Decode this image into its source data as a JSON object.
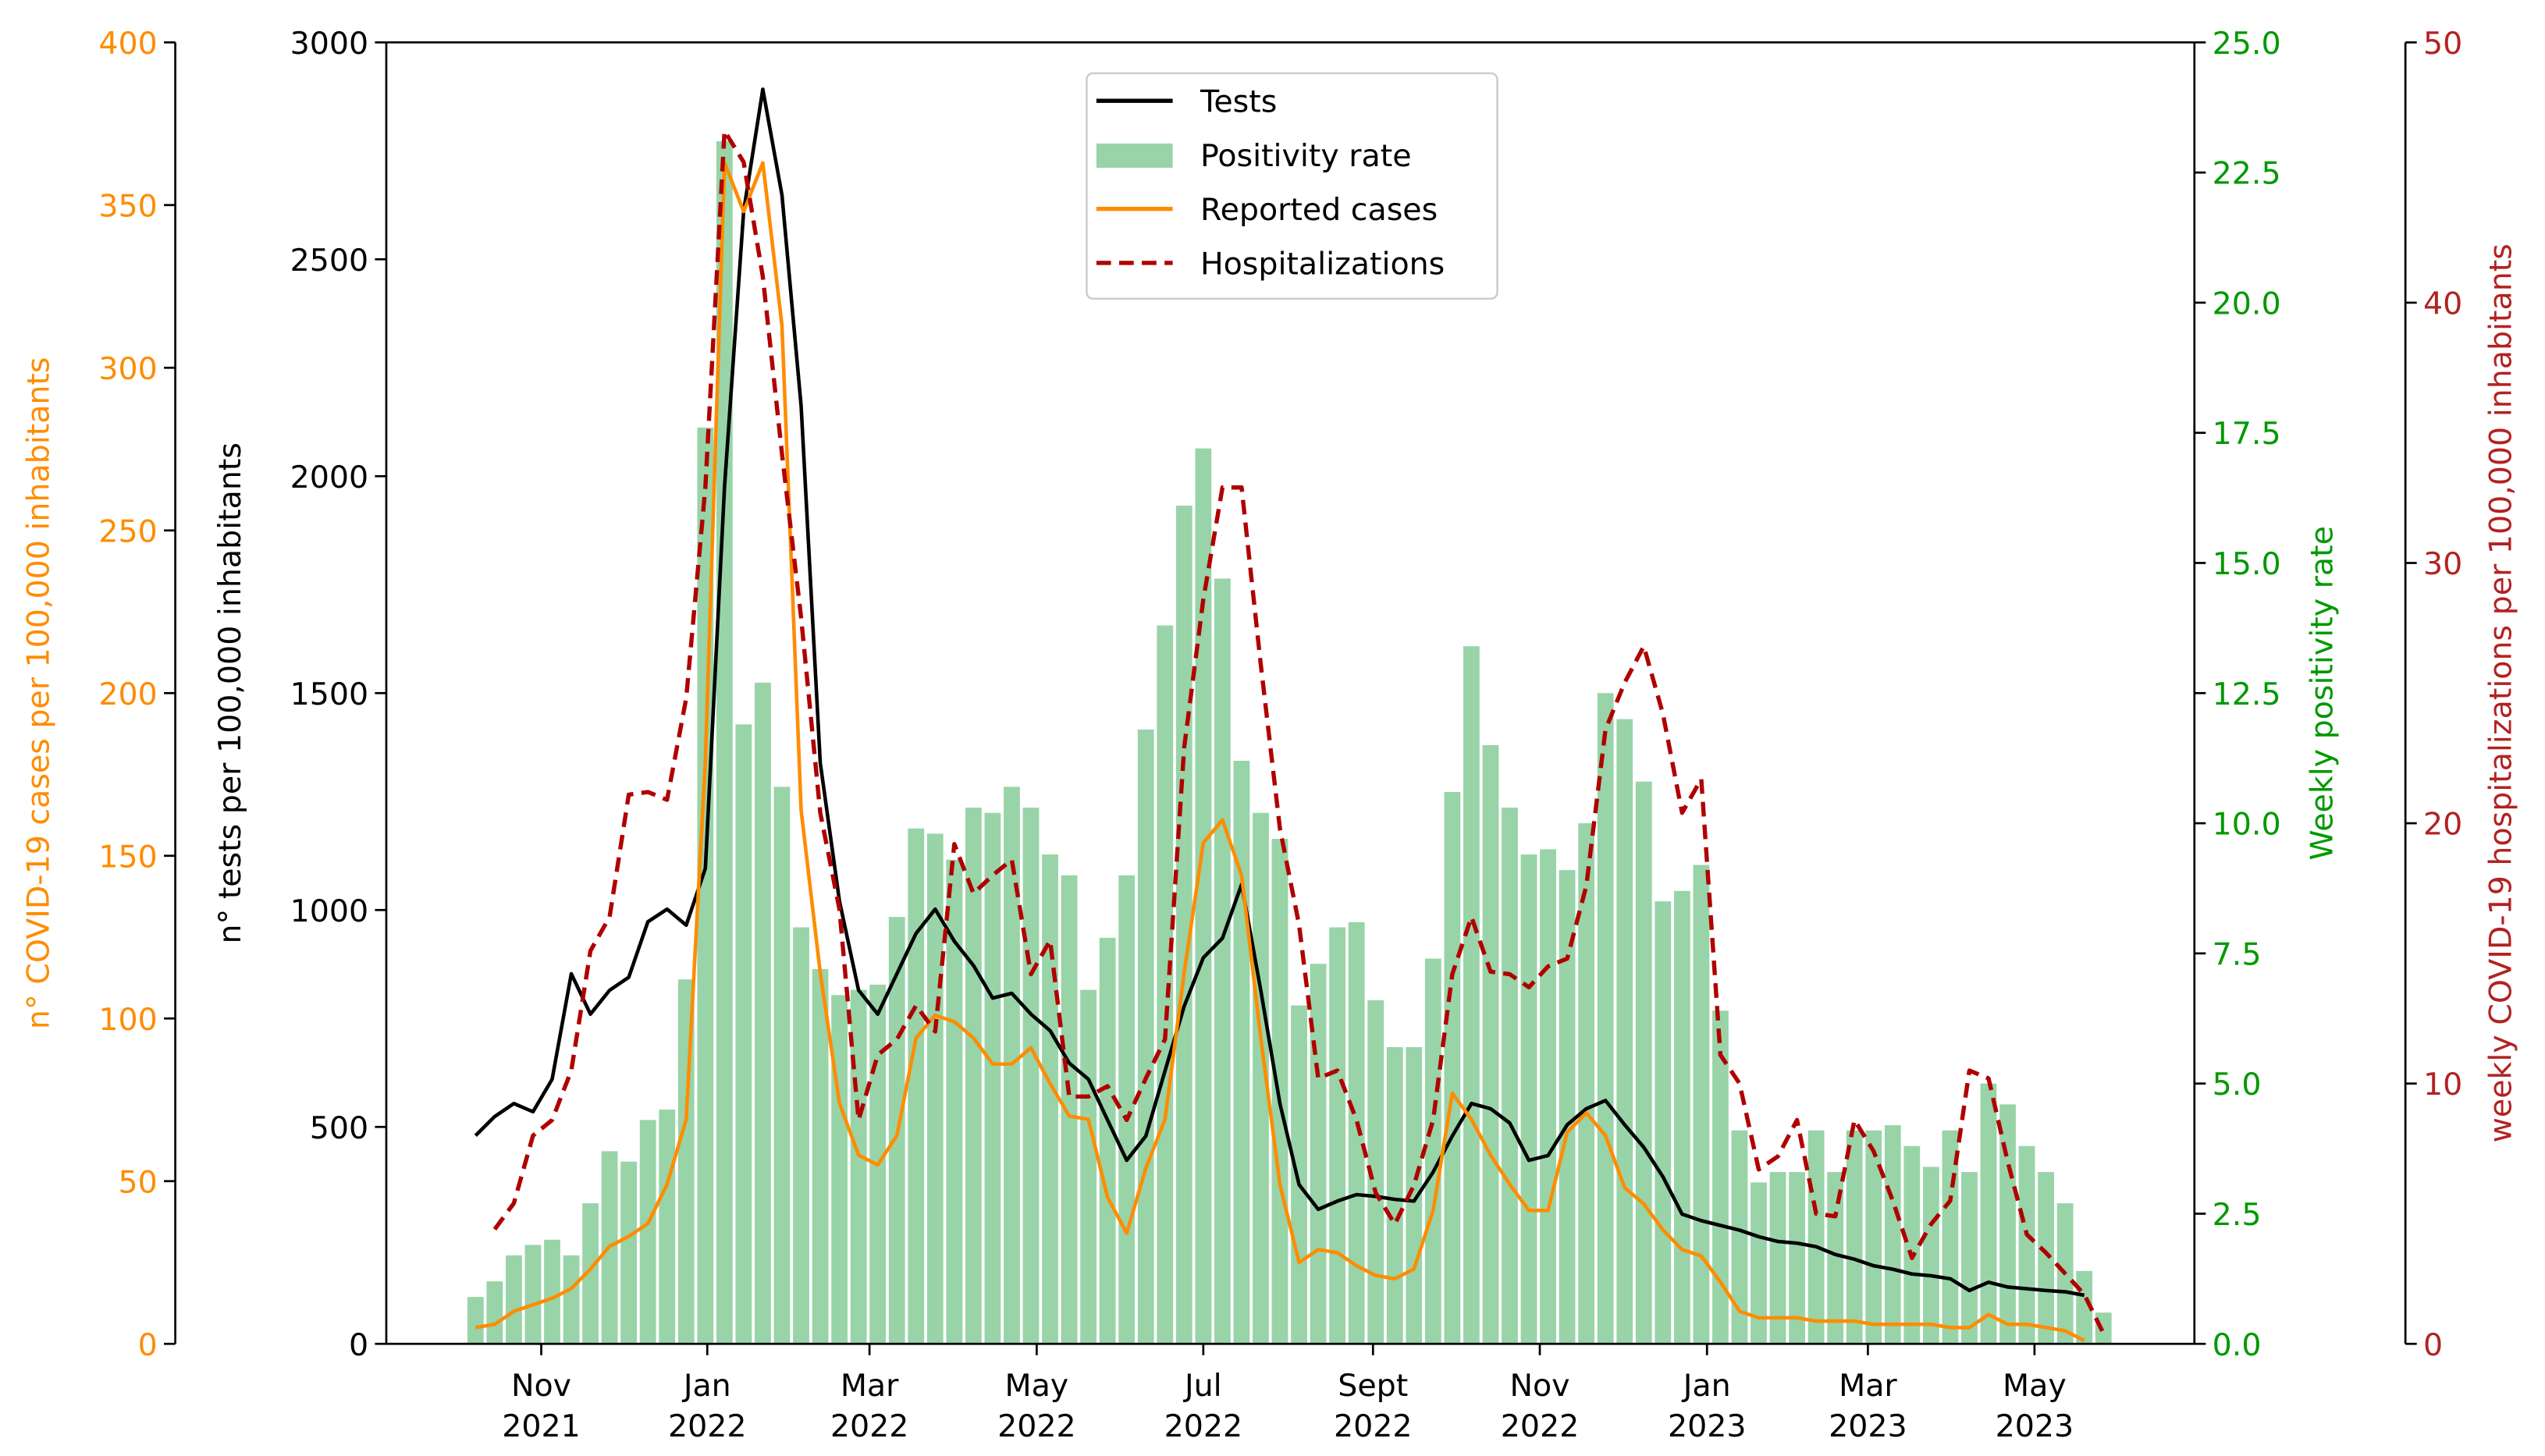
{
  "chart_data": {
    "type": "combo",
    "x": [
      0,
      1,
      2,
      3,
      4,
      5,
      6,
      7,
      8,
      9,
      10,
      11,
      12,
      13,
      14,
      15,
      16,
      17,
      18,
      19,
      20,
      21,
      22,
      23,
      24,
      25,
      26,
      27,
      28,
      29,
      30,
      31,
      32,
      33,
      34,
      35,
      36,
      37,
      38,
      39,
      40,
      41,
      42,
      43,
      44,
      45,
      46,
      47,
      48,
      49,
      50,
      51,
      52,
      53,
      54,
      55,
      56,
      57,
      58,
      59,
      60,
      61,
      62,
      63,
      64,
      65,
      66,
      67,
      68,
      69,
      70,
      71,
      72,
      73,
      74,
      75,
      76,
      77,
      78,
      79,
      80,
      81,
      82,
      83,
      84,
      85
    ],
    "xlim": [
      -4.66,
      89.75
    ],
    "xticks": [
      {
        "value": 3.43,
        "label": "Nov 2021"
      },
      {
        "value": 12.1,
        "label": "Jan 2022"
      },
      {
        "value": 20.57,
        "label": "Mar 2022"
      },
      {
        "value": 29.3,
        "label": "May 2022"
      },
      {
        "value": 38.0,
        "label": "Jul 2022"
      },
      {
        "value": 46.86,
        "label": "Sept 2022"
      },
      {
        "value": 55.57,
        "label": "Nov 2022"
      },
      {
        "value": 64.3,
        "label": "Jan 2023"
      },
      {
        "value": 72.7,
        "label": "Mar 2023"
      },
      {
        "value": 81.4,
        "label": "May 2023"
      }
    ],
    "y_axes": [
      {
        "label": "n° COVID-19 cases per 100,000 inhabitants",
        "color": "#ff8c00",
        "ylim": [
          0,
          400
        ],
        "yticks": [
          0,
          50,
          100,
          150,
          200,
          250,
          300,
          350,
          400
        ]
      },
      {
        "label": "n° tests per 100,000 inhabitants",
        "color": "#000000",
        "ylim": [
          0,
          3000
        ],
        "yticks": [
          0,
          500,
          1000,
          1500,
          2000,
          2500,
          3000
        ]
      },
      {
        "label": "Weekly positivity rate",
        "color": "#009900",
        "ylim": [
          0,
          25
        ],
        "yticks": [
          {
            "value": 0,
            "label": "0.0"
          },
          {
            "value": 2.5,
            "label": "2.5"
          },
          {
            "value": 5,
            "label": "5.0"
          },
          {
            "value": 7.5,
            "label": "7.5"
          },
          {
            "value": 10,
            "label": "10.0"
          },
          {
            "value": 12.5,
            "label": "12.5"
          },
          {
            "value": 15,
            "label": "15.0"
          },
          {
            "value": 17.5,
            "label": "17.5"
          },
          {
            "value": 20,
            "label": "20.0"
          },
          {
            "value": 22.5,
            "label": "22.5"
          },
          {
            "value": 25,
            "label": "25.0"
          }
        ]
      },
      {
        "label": "weekly COVID-19 hospitalizations per 100,000 inhabitants",
        "color": "#b22222",
        "ylim": [
          0,
          50
        ],
        "yticks": [
          0,
          10,
          20,
          30,
          40,
          50
        ]
      }
    ],
    "legend": "upper center",
    "series": [
      {
        "name": "Tests",
        "type": "line",
        "axis": 1,
        "color": "#000000",
        "dash": false,
        "values": [
          480,
          524,
          554,
          535,
          610,
          853,
          760,
          815,
          845,
          973,
          1002,
          965,
          1096,
          1975,
          2611,
          2892,
          2648,
          2162,
          1339,
          1021,
          815,
          760,
          853,
          946,
          1002,
          928,
          872,
          797,
          808,
          760,
          722,
          647,
          610,
          516,
          423,
          479,
          629,
          778,
          890,
          935,
          1059,
          815,
          554,
          367,
          310,
          329,
          344,
          340,
          333,
          329,
          396,
          479,
          554,
          542,
          509,
          423,
          434,
          505,
          542,
          561,
          505,
          453,
          385,
          299,
          284,
          273,
          262,
          247,
          236,
          232,
          224,
          206,
          195,
          180,
          172,
          161,
          157,
          150,
          123,
          142,
          131,
          127,
          123,
          120,
          112,
          null
        ]
      },
      {
        "name": "Positivity rate",
        "type": "bar",
        "axis": 2,
        "color": "#98d4a8",
        "dash": false,
        "values": [
          0.9,
          1.2,
          1.7,
          1.9,
          2.0,
          1.7,
          2.7,
          3.7,
          3.5,
          4.3,
          4.5,
          7.0,
          17.6,
          23.1,
          11.9,
          12.7,
          10.7,
          8.0,
          7.2,
          6.7,
          6.8,
          6.9,
          8.2,
          9.9,
          9.8,
          9.3,
          10.3,
          10.2,
          10.7,
          10.3,
          9.4,
          9.0,
          6.8,
          7.8,
          9.0,
          11.8,
          13.8,
          16.1,
          17.2,
          14.7,
          11.2,
          10.2,
          9.7,
          6.5,
          7.3,
          8.0,
          8.1,
          6.6,
          5.7,
          5.7,
          7.4,
          10.6,
          13.4,
          11.5,
          10.3,
          9.4,
          9.5,
          9.1,
          10.0,
          12.5,
          12.0,
          10.8,
          8.5,
          8.7,
          9.2,
          6.4,
          4.1,
          3.1,
          3.3,
          3.3,
          4.1,
          3.3,
          4.1,
          4.1,
          4.2,
          3.8,
          3.4,
          4.1,
          3.3,
          5.0,
          4.6,
          3.8,
          3.3,
          2.7,
          1.4,
          0.6
        ]
      },
      {
        "name": "Reported cases",
        "type": "line",
        "axis": 0,
        "color": "#ff8c00",
        "dash": false,
        "values": [
          5,
          6,
          10,
          12,
          14,
          17,
          23,
          30,
          33,
          37,
          49,
          69,
          179,
          363,
          348,
          363,
          313,
          164,
          114,
          74,
          58,
          55,
          64,
          94,
          101,
          99,
          94,
          86,
          86,
          91,
          80,
          70,
          69,
          45,
          34,
          54,
          69,
          114,
          154,
          161,
          144,
          94,
          49,
          25,
          29,
          28,
          24,
          21,
          20,
          23,
          41,
          77,
          69,
          58,
          49,
          41,
          41,
          65,
          71,
          64,
          48,
          43,
          35,
          29,
          27,
          19,
          10,
          8,
          8,
          8,
          7,
          7,
          7,
          6,
          6,
          6,
          6,
          5,
          5,
          9,
          6,
          6,
          5,
          4,
          1,
          null
        ]
      },
      {
        "name": "Hospitalizations",
        "type": "line",
        "axis": 3,
        "color": "#b00000",
        "dash": true,
        "values": [
          null,
          4.4,
          5.4,
          8.0,
          8.6,
          10.5,
          15.1,
          16.4,
          21.1,
          21.2,
          20.9,
          24.8,
          32.9,
          46.6,
          45.4,
          41.0,
          34.2,
          27.9,
          20.4,
          16.7,
          8.6,
          11.1,
          11.7,
          13.0,
          12.0,
          19.2,
          17.3,
          18.0,
          18.6,
          14.2,
          15.5,
          9.5,
          9.5,
          9.9,
          8.6,
          10.2,
          11.7,
          22.9,
          28.6,
          32.9,
          32.9,
          26.1,
          19.8,
          16.1,
          10.2,
          10.5,
          8.6,
          5.8,
          4.6,
          6.1,
          8.6,
          14.2,
          16.4,
          14.3,
          14.2,
          13.7,
          14.5,
          14.8,
          17.6,
          23.6,
          25.4,
          26.8,
          24.2,
          20.4,
          21.7,
          11.1,
          10.0,
          6.7,
          7.2,
          8.6,
          5.0,
          4.9,
          8.6,
          7.4,
          5.5,
          3.3,
          4.6,
          5.5,
          10.5,
          10.2,
          7.0,
          4.2,
          3.5,
          2.7,
          1.9,
          0.4
        ]
      }
    ]
  }
}
